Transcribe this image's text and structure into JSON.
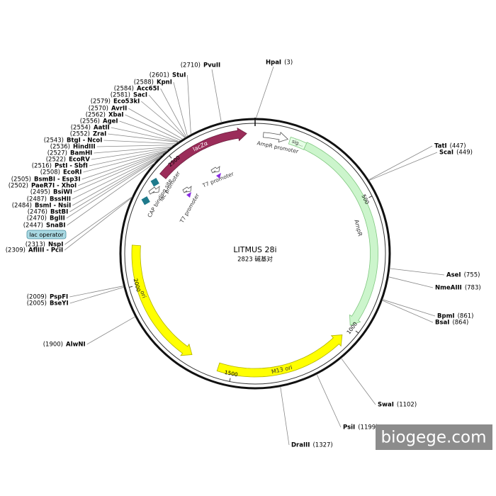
{
  "title": "LITMUS 28i",
  "length": "2823 碱基对",
  "sites": [
    {
      "name": "PvuII",
      "position": "(2710)"
    },
    {
      "name": "HpaI",
      "position": "(3)"
    },
    {
      "name": "StuI",
      "position": "(2601)"
    },
    {
      "name": "KpnI",
      "position": "(2588)"
    },
    {
      "name": "Acc65I",
      "position": "(2584)"
    },
    {
      "name": "SacI",
      "position": "(2581)"
    },
    {
      "name": "Eco53kI",
      "position": "(2579)"
    },
    {
      "name": "AvrII",
      "position": "(2570)"
    },
    {
      "name": "XbaI",
      "position": "(2562)"
    },
    {
      "name": "AgeI",
      "position": "(2556)"
    },
    {
      "name": "AatII",
      "position": "(2554)"
    },
    {
      "name": "ZraI",
      "position": "(2552)"
    },
    {
      "name": "BtgI - NcoI",
      "position": "(2543)"
    },
    {
      "name": "HindIII",
      "position": "(2536)"
    },
    {
      "name": "BamHI",
      "position": "(2527)"
    },
    {
      "name": "EcoRV",
      "position": "(2522)"
    },
    {
      "name": "PstI - SbfI",
      "position": "(2516)"
    },
    {
      "name": "EcoRI",
      "position": "(2508)"
    },
    {
      "name": "BsmBI - Esp3I",
      "position": "(2505)"
    },
    {
      "name": "PaeR7I - XhoI",
      "position": "(2502)"
    },
    {
      "name": "BsiWI",
      "position": "(2495)"
    },
    {
      "name": "BssHII",
      "position": "(2487)"
    },
    {
      "name": "BsmI - NsiI",
      "position": "(2484)"
    },
    {
      "name": "BstBI",
      "position": "(2476)"
    },
    {
      "name": "BglII",
      "position": "(2470)"
    },
    {
      "name": "SnaBI",
      "position": "(2447)"
    },
    {
      "name": "NspI",
      "position": "(2313)"
    },
    {
      "name": "AflIII - PciI",
      "position": "(2309)"
    },
    {
      "name": "PspFI",
      "position": "(2009)"
    },
    {
      "name": "BseYI",
      "position": "(2005)"
    },
    {
      "name": "AlwNI",
      "position": "(1900)"
    },
    {
      "name": "TatI",
      "position": "(447)"
    },
    {
      "name": "ScaI",
      "position": "(449)"
    },
    {
      "name": "AseI",
      "position": "(755)"
    },
    {
      "name": "NmeAIII",
      "position": "(783)"
    },
    {
      "name": "BpmI",
      "position": "(861)"
    },
    {
      "name": "BsaI",
      "position": "(864)"
    },
    {
      "name": "SwaI",
      "position": "(1102)"
    },
    {
      "name": "PsiI",
      "position": "(1199)"
    },
    {
      "name": "DraIII",
      "position": "(1327)"
    }
  ],
  "features": [
    "lacZα",
    "AmpR promoter",
    "sig...",
    "AmpR",
    "ori",
    "M13 ori",
    "lac promoter",
    "CAP binding site",
    "T7 promoter",
    "T7 promoter",
    "lac operator"
  ],
  "ticks": [
    500,
    1000,
    1500,
    2000,
    2500
  ],
  "watermark": "biogege.com"
}
